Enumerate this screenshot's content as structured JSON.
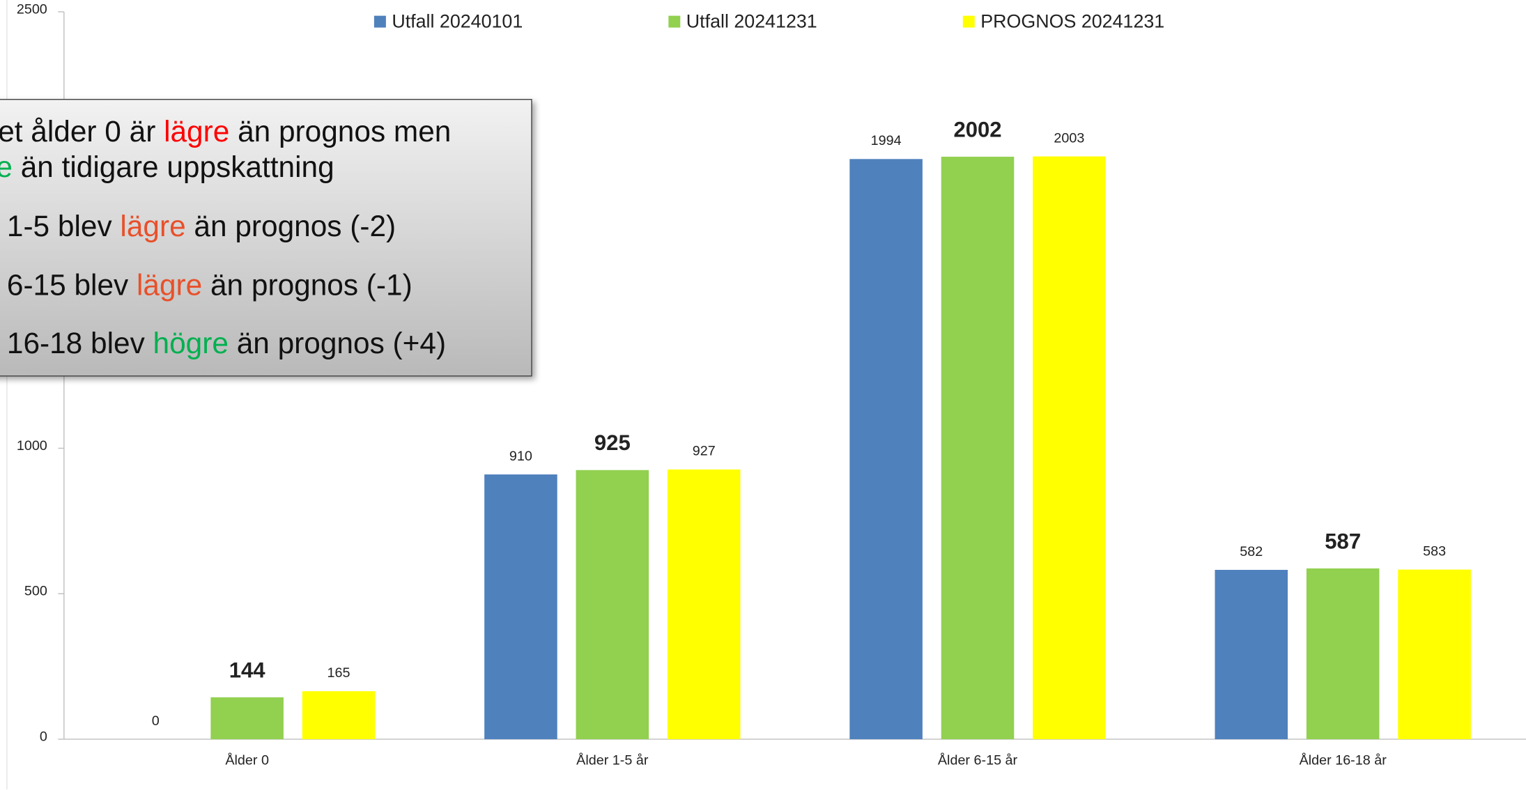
{
  "chart_data": {
    "type": "bar",
    "categories": [
      "Ålder 0",
      "Ålder 1-5 år",
      "Ålder 6-15 år",
      "Ålder 16-18 år"
    ],
    "series": [
      {
        "name": "Utfall 20240101",
        "color": "#4f81bd",
        "values": [
          0,
          910,
          1994,
          582
        ]
      },
      {
        "name": "Utfall 20241231",
        "color": "#92d050",
        "values": [
          144,
          925,
          2002,
          587
        ],
        "bold_labels": true
      },
      {
        "name": "PROGNOS 20241231",
        "color": "#ffff00",
        "values": [
          165,
          927,
          2003,
          583
        ]
      }
    ],
    "ylim": [
      0,
      2500
    ],
    "yticks": [
      0,
      500,
      1000,
      2500
    ],
    "grid": false,
    "legend": "top",
    "annotation": {
      "lines": [
        [
          {
            "text": "et ålder 0 är "
          },
          {
            "text": "lägre",
            "color": "#ff0000"
          },
          {
            "text": " än prognos men"
          }
        ],
        [
          {
            "text": "e",
            "color": "#00b050"
          },
          {
            "text": " än tidigare uppskattning"
          }
        ],
        [
          {
            "text": "1-5 blev "
          },
          {
            "text": "lägre",
            "color": "#e8502a"
          },
          {
            "text": " än prognos (-2)"
          }
        ],
        [
          {
            "text": "6-15 blev "
          },
          {
            "text": "lägre",
            "color": "#e8502a"
          },
          {
            "text": " än prognos (-1)"
          }
        ],
        [
          {
            "text": "16-18 blev "
          },
          {
            "text": "högre",
            "color": "#00b050"
          },
          {
            "text": " än prognos (+4)"
          }
        ]
      ]
    }
  }
}
